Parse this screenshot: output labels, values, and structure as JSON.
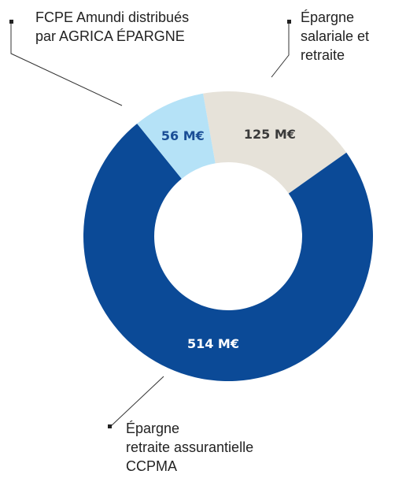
{
  "chart_data": {
    "type": "donut",
    "categories": [
      "Épargne\nsalariale et\nretraite",
      "Épargne\nretraite assurantielle\nCCPMA",
      "FCPE Amundi distribués\npar AGRICA ÉPARGNE"
    ],
    "values": [
      125,
      514,
      56
    ],
    "value_labels": [
      "125 M€",
      "514 M€",
      "56 M€"
    ],
    "colors": [
      "#e6e2d9",
      "#0b4a97",
      "#b5e2f7"
    ],
    "label_colors": [
      "#3a3a3a",
      "#ffffff",
      "#1a4e96"
    ]
  }
}
